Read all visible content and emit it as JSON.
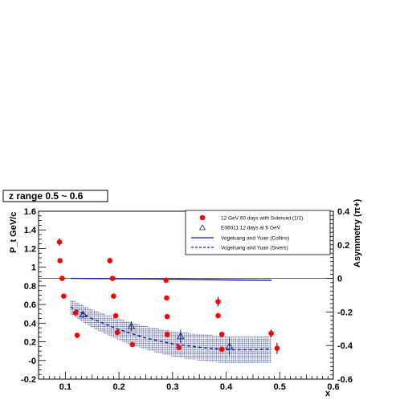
{
  "chart_data": {
    "type": "scatter",
    "title": "z range 0.5 ~ 0.6",
    "xlabel": "x",
    "ylabel_left": "P_t GeV/c",
    "ylabel_right": "Asymmetry (π+)",
    "xlim": [
      0.05,
      0.6
    ],
    "ylim_left": [
      -0.2,
      1.6
    ],
    "ylim_right": [
      -0.6,
      0.4
    ],
    "x_ticks": [
      "0.1",
      "0.2",
      "0.3",
      "0.4",
      "0.5",
      "0.6"
    ],
    "y_left_ticks": [
      "-0.2",
      "-0",
      "0.2",
      "0.4",
      "0.6",
      "0.8",
      "1",
      "1.2",
      "1.4",
      "1.6"
    ],
    "y_right_ticks": [
      "-0.6",
      "-0.4",
      "-0.2",
      "0",
      "0.2",
      "0.4"
    ],
    "legend": {
      "placement": "top-right",
      "entries": [
        "12 GeV 60 days with Solenoid (1/2)",
        "E06011 12 days at 6 GeV",
        "Vogelsang and Yuan (Collins)",
        "Vogelsang and Yuan (Sivers)"
      ]
    },
    "series": [
      {
        "axis": "left",
        "marker": "filled-circle",
        "color": "#ff0000",
        "points": [
          {
            "x": 0.089,
            "y": 1.27,
            "err": 0.04
          },
          {
            "x": 0.09,
            "y": 1.07,
            "err": 0
          },
          {
            "x": 0.094,
            "y": 0.88,
            "err": 0
          },
          {
            "x": 0.097,
            "y": 0.69,
            "err": 0
          },
          {
            "x": 0.119,
            "y": 0.51,
            "err": 0
          },
          {
            "x": 0.122,
            "y": 0.27,
            "err": 0
          },
          {
            "x": 0.183,
            "y": 1.07,
            "err": 0.03
          },
          {
            "x": 0.188,
            "y": 0.88,
            "err": 0
          },
          {
            "x": 0.19,
            "y": 0.69,
            "err": 0
          },
          {
            "x": 0.194,
            "y": 0.48,
            "err": 0
          },
          {
            "x": 0.197,
            "y": 0.3,
            "err": 0
          },
          {
            "x": 0.225,
            "y": 0.17,
            "err": 0
          },
          {
            "x": 0.288,
            "y": 0.86,
            "err": 0.03
          },
          {
            "x": 0.289,
            "y": 0.67,
            "err": 0
          },
          {
            "x": 0.29,
            "y": 0.47,
            "err": 0
          },
          {
            "x": 0.29,
            "y": 0.28,
            "err": 0
          },
          {
            "x": 0.312,
            "y": 0.14,
            "err": 0
          },
          {
            "x": 0.385,
            "y": 0.63,
            "err": 0.05
          },
          {
            "x": 0.385,
            "y": 0.48,
            "err": 0
          },
          {
            "x": 0.392,
            "y": 0.28,
            "err": 0
          },
          {
            "x": 0.392,
            "y": 0.12,
            "err": 0
          },
          {
            "x": 0.484,
            "y": 0.29,
            "err": 0.04
          },
          {
            "x": 0.495,
            "y": 0.13,
            "err": 0.06
          }
        ]
      },
      {
        "axis": "right",
        "marker": "open-triangle",
        "color": "#1a2a8a",
        "points": [
          {
            "x": 0.133,
            "y": -0.215,
            "err": 0.022
          },
          {
            "x": 0.223,
            "y": -0.285,
            "err": 0.03
          },
          {
            "x": 0.315,
            "y": -0.345,
            "err": 0.04
          },
          {
            "x": 0.406,
            "y": -0.405,
            "err": 0.055
          }
        ]
      },
      {
        "axis": "right",
        "marker": "solid-line",
        "color": "#1a1aa8",
        "x": [
          0.11,
          0.2,
          0.3,
          0.4,
          0.485
        ],
        "y": [
          0.0,
          -0.002,
          -0.005,
          -0.009,
          -0.012
        ]
      },
      {
        "axis": "right",
        "marker": "dashed-line",
        "color": "#1a1aa8",
        "x": [
          0.11,
          0.15,
          0.2,
          0.25,
          0.3,
          0.35,
          0.4,
          0.45,
          0.485
        ],
        "y": [
          -0.17,
          -0.24,
          -0.305,
          -0.355,
          -0.39,
          -0.41,
          -0.425,
          -0.425,
          -0.42
        ],
        "band": [
          0.045,
          0.055,
          0.065,
          0.07,
          0.075,
          0.08,
          0.08,
          0.08,
          0.08
        ]
      }
    ]
  }
}
